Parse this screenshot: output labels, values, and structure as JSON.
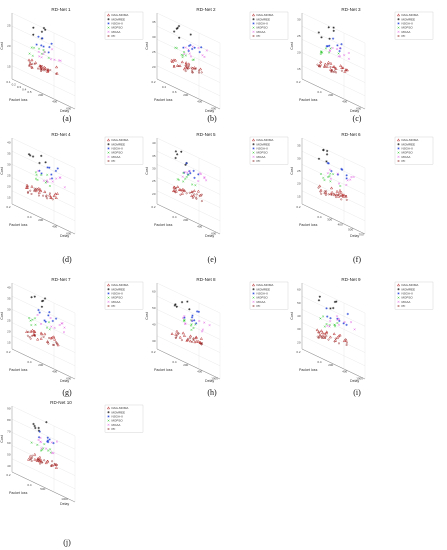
{
  "figure": {
    "legend_entries": [
      {
        "name": "DAG-MOMA",
        "color": "#b22222",
        "marker": "triangle"
      },
      {
        "name": "MOMREE",
        "color": "#111111",
        "marker": "star"
      },
      {
        "name": "NSGA-II",
        "color": "#1f3fd6",
        "marker": "star"
      },
      {
        "name": "MOPSO",
        "color": "#22c322",
        "marker": "cross"
      },
      {
        "name": "MOAA",
        "color": "#e055e0",
        "marker": "cross"
      },
      {
        "name": "PF",
        "color": "#8b1a1a",
        "marker": "circle"
      }
    ]
  },
  "chart_data": [
    {
      "type": "scatter",
      "title": "RD-Net 1",
      "caption": "(a)",
      "xlabel": "Packet loss",
      "ylabel": "Delay",
      "zlabel": "Cost",
      "x_ticks": [
        "0.1",
        "0.2",
        "0.3",
        "0.4",
        "0.5"
      ],
      "y_ticks": [
        "200",
        "400",
        "600"
      ],
      "z_ticks": [
        "15",
        "20",
        "25"
      ],
      "zlim": [
        12,
        28
      ]
    },
    {
      "type": "scatter",
      "title": "RD-Net 2",
      "caption": "(b)",
      "xlabel": "Packet loss",
      "ylabel": "Delay",
      "zlabel": "Cost",
      "x_ticks": [
        "0.2",
        "0.4",
        "0.6"
      ],
      "y_ticks": [
        "200",
        "400",
        "600"
      ],
      "z_ticks": [
        "20",
        "25",
        "30",
        "35"
      ],
      "zlim": [
        16,
        38
      ]
    },
    {
      "type": "scatter",
      "title": "RD-Net 3",
      "caption": "(c)",
      "xlabel": "Packet loss",
      "ylabel": "Delay",
      "zlabel": "Cost",
      "x_ticks": [
        "0.2",
        "0.4"
      ],
      "y_ticks": [
        "200",
        "400",
        "600"
      ],
      "z_ticks": [
        "15",
        "20",
        "25",
        "30"
      ],
      "zlim": [
        12,
        32
      ]
    },
    {
      "type": "scatter",
      "title": "RD-Net 4",
      "caption": "(d)",
      "xlabel": "Packet loss",
      "ylabel": "Delay",
      "zlabel": "Cost",
      "x_ticks": [
        "0.2",
        "0.4"
      ],
      "y_ticks": [
        "200",
        "400",
        "600"
      ],
      "z_ticks": [
        "15",
        "20",
        "25",
        "30",
        "35",
        "40"
      ],
      "zlim": [
        12,
        42
      ]
    },
    {
      "type": "scatter",
      "title": "RD-Net 5",
      "caption": "(e)",
      "xlabel": "Packet loss",
      "ylabel": "Delay",
      "zlabel": "Cost",
      "x_ticks": [
        "0.2",
        "0.4"
      ],
      "y_ticks": [
        "200",
        "400",
        "600"
      ],
      "z_ticks": [
        "20",
        "25",
        "30",
        "35",
        "40"
      ],
      "zlim": [
        16,
        42
      ]
    },
    {
      "type": "scatter",
      "title": "RD-Net 6",
      "caption": "(f)",
      "xlabel": "Packet loss",
      "ylabel": "Delay",
      "zlabel": "Cost",
      "x_ticks": [
        "0.2",
        "0.4"
      ],
      "y_ticks": [
        "300",
        "400",
        "500",
        "700"
      ],
      "z_ticks": [
        "15",
        "20",
        "25",
        "30",
        "35"
      ],
      "zlim": [
        12,
        38
      ]
    },
    {
      "type": "scatter",
      "title": "RD-Net 7",
      "caption": "(g)",
      "xlabel": "Packet loss",
      "ylabel": "Delay",
      "zlabel": "Cost",
      "x_ticks": [
        "0.2",
        "0.4"
      ],
      "y_ticks": [
        "200",
        "400",
        "600"
      ],
      "z_ticks": [
        "15",
        "20",
        "25",
        "30",
        "35",
        "40"
      ],
      "zlim": [
        12,
        42
      ]
    },
    {
      "type": "scatter",
      "title": "RD-Net 8",
      "caption": "(h)",
      "xlabel": "Packet loss",
      "ylabel": "Delay",
      "zlabel": "Cost",
      "x_ticks": [
        "0.2",
        "0.4"
      ],
      "y_ticks": [
        "200",
        "400",
        "1000"
      ],
      "z_ticks": [
        "30",
        "40",
        "50",
        "60"
      ],
      "zlim": [
        25,
        65
      ]
    },
    {
      "type": "scatter",
      "title": "RD-Net 9",
      "caption": "(i)",
      "xlabel": "Packet loss",
      "ylabel": "Delay",
      "zlabel": "Cost",
      "x_ticks": [
        "0.2",
        "0.4"
      ],
      "y_ticks": [
        "200",
        "400",
        "1000"
      ],
      "z_ticks": [
        "20",
        "30",
        "40",
        "50",
        "60"
      ],
      "zlim": [
        15,
        65
      ]
    },
    {
      "type": "scatter",
      "title": "RD-Net 10",
      "caption": "(j)",
      "xlabel": "Packet loss",
      "ylabel": "Delay",
      "zlabel": "Cost",
      "x_ticks": [
        "0.2",
        "0.4"
      ],
      "y_ticks": [
        "500",
        "1000"
      ],
      "z_ticks": [
        "40",
        "50",
        "60",
        "70",
        "80",
        "90"
      ],
      "zlim": [
        35,
        92
      ]
    }
  ]
}
